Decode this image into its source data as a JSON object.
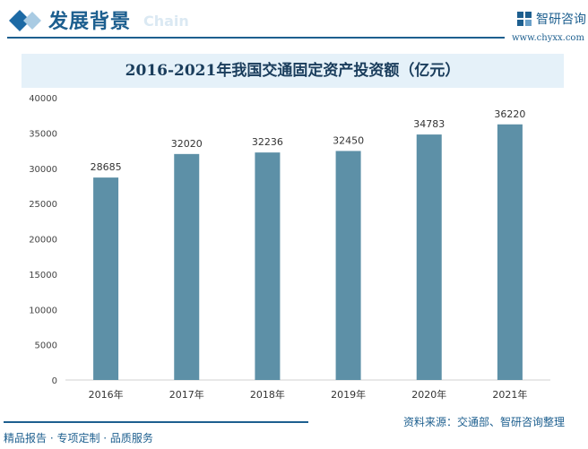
{
  "header": {
    "title": "发展背景",
    "watermark": "Chain",
    "logo_name": "智研咨询",
    "logo_url": "www.chyxx.com",
    "accent": "#1d5f8f"
  },
  "footer": {
    "source": "资料来源：交通部、智研咨询整理",
    "slogan": "精品报告 · 专项定制 · 品质服务"
  },
  "chart_data": {
    "type": "bar",
    "title": "2016-2021年我国交通固定资产投资额（亿元）",
    "categories": [
      "2016年",
      "2017年",
      "2018年",
      "2019年",
      "2020年",
      "2021年"
    ],
    "values": [
      28685,
      32020,
      32236,
      32450,
      34783,
      36220
    ],
    "ylim": [
      0,
      40000
    ],
    "yticks": [
      0,
      5000,
      10000,
      15000,
      20000,
      25000,
      30000,
      35000,
      40000
    ],
    "grid": false,
    "bar_color": "#5d90a7",
    "xlabel": "",
    "ylabel": ""
  }
}
